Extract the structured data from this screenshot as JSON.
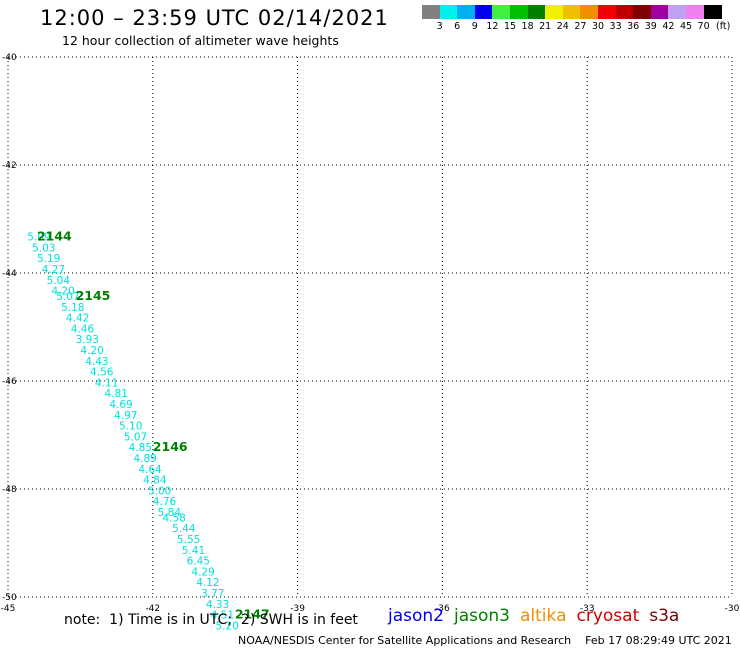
{
  "header": {
    "title": "12:00 – 23:59 UTC 02/14/2021",
    "subtitle": "12 hour collection of altimeter wave heights"
  },
  "color_scale": {
    "unit": "(ft)",
    "labels": [
      "3",
      "6",
      "9",
      "12",
      "15",
      "18",
      "21",
      "24",
      "27",
      "30",
      "33",
      "36",
      "39",
      "42",
      "45",
      "70"
    ],
    "colors": [
      "#808080",
      "#00f0f0",
      "#00b0f0",
      "#0000f0",
      "#40f040",
      "#00c000",
      "#008000",
      "#f0f000",
      "#f0c000",
      "#f09000",
      "#f00000",
      "#c00000",
      "#800000",
      "#a000a0",
      "#c0a0f0",
      "#f080f0",
      "#000000"
    ]
  },
  "footer": {
    "note": "note:  1) Time is in UTC;  2) SWH is in feet",
    "satellites": [
      {
        "name": "jason2",
        "color": "#0000f0"
      },
      {
        "name": "jason3",
        "color": "#008000"
      },
      {
        "name": "altika",
        "color": "#f09000"
      },
      {
        "name": "cryosat",
        "color": "#d00000"
      },
      {
        "name": "s3a",
        "color": "#800000"
      }
    ],
    "credit": "NOAA/NESDIS Center for Satellite Applications and Research    Feb 17 08:29:49 UTC 2021"
  },
  "chart_data": {
    "type": "scatter",
    "title": "12:00 – 23:59 UTC 02/14/2021",
    "subtitle": "12 hour collection of altimeter wave heights",
    "xlabel": "",
    "ylabel": "",
    "xlim": [
      -45,
      -30
    ],
    "ylim": [
      -50,
      -40
    ],
    "x_ticks": [
      "-45",
      "-42",
      "-39",
      "-36",
      "-33",
      "-30"
    ],
    "y_ticks": [
      "-40",
      "-42",
      "-44",
      "-46",
      "-48",
      "-50"
    ],
    "grid": true,
    "series": [
      {
        "name": "jason3",
        "color": "#00e0e0",
        "points": [
          {
            "x": -44.6,
            "y": -43.4,
            "label": "5.09"
          },
          {
            "x": -44.5,
            "y": -43.6,
            "label": "5.03"
          },
          {
            "x": -44.4,
            "y": -43.8,
            "label": "5.19"
          },
          {
            "x": -44.3,
            "y": -44.0,
            "label": "4.27"
          },
          {
            "x": -44.2,
            "y": -44.2,
            "label": "5.04"
          },
          {
            "x": -44.1,
            "y": -44.4,
            "label": "4.20"
          },
          {
            "x": -44.0,
            "y": -44.5,
            "label": "5.07"
          },
          {
            "x": -43.9,
            "y": -44.7,
            "label": "5.18"
          },
          {
            "x": -43.8,
            "y": -44.9,
            "label": "4.42"
          },
          {
            "x": -43.7,
            "y": -45.1,
            "label": "4.46"
          },
          {
            "x": -43.6,
            "y": -45.3,
            "label": "3.93"
          },
          {
            "x": -43.5,
            "y": -45.5,
            "label": "4.20"
          },
          {
            "x": -43.4,
            "y": -45.7,
            "label": "4.43"
          },
          {
            "x": -43.3,
            "y": -45.9,
            "label": "4.56"
          },
          {
            "x": -43.2,
            "y": -46.1,
            "label": "4.11"
          },
          {
            "x": -43.0,
            "y": -46.3,
            "label": "4.81"
          },
          {
            "x": -42.9,
            "y": -46.5,
            "label": "4.69"
          },
          {
            "x": -42.8,
            "y": -46.7,
            "label": "4.97"
          },
          {
            "x": -42.7,
            "y": -46.9,
            "label": "5.10"
          },
          {
            "x": -42.6,
            "y": -47.1,
            "label": "5.07"
          },
          {
            "x": -42.5,
            "y": -47.3,
            "label": "4.85"
          },
          {
            "x": -42.4,
            "y": -47.5,
            "label": "4.89"
          },
          {
            "x": -42.3,
            "y": -47.7,
            "label": "4.64"
          },
          {
            "x": -42.2,
            "y": -47.9,
            "label": "4.84"
          },
          {
            "x": -42.1,
            "y": -48.1,
            "label": "5.00"
          },
          {
            "x": -42.0,
            "y": -48.3,
            "label": "4.76"
          },
          {
            "x": -41.9,
            "y": -48.5,
            "label": "5.84"
          },
          {
            "x": -41.8,
            "y": -48.6,
            "label": "4.58"
          },
          {
            "x": -41.6,
            "y": -48.8,
            "label": "5.44"
          },
          {
            "x": -41.5,
            "y": -49.0,
            "label": "5.55"
          },
          {
            "x": -41.4,
            "y": -49.2,
            "label": "5.41"
          },
          {
            "x": -41.3,
            "y": -49.4,
            "label": "6.45"
          },
          {
            "x": -41.2,
            "y": -49.6,
            "label": "4.29"
          },
          {
            "x": -41.1,
            "y": -49.8,
            "label": "4.12"
          },
          {
            "x": -41.0,
            "y": -50.0,
            "label": "3.77"
          },
          {
            "x": -40.9,
            "y": -50.2,
            "label": "4.33"
          },
          {
            "x": -40.8,
            "y": -50.4,
            "label": "4.51"
          },
          {
            "x": -40.7,
            "y": -50.6,
            "label": "5.20"
          }
        ]
      }
    ],
    "annotations": [
      {
        "text": "2144",
        "x": -44.4,
        "y": -43.4,
        "color": "#008000"
      },
      {
        "text": "2145",
        "x": -43.6,
        "y": -44.5,
        "color": "#008000"
      },
      {
        "text": "2146",
        "x": -42.0,
        "y": -47.3,
        "color": "#008000"
      },
      {
        "text": "2147",
        "x": -40.3,
        "y": -50.4,
        "color": "#008000"
      }
    ]
  }
}
